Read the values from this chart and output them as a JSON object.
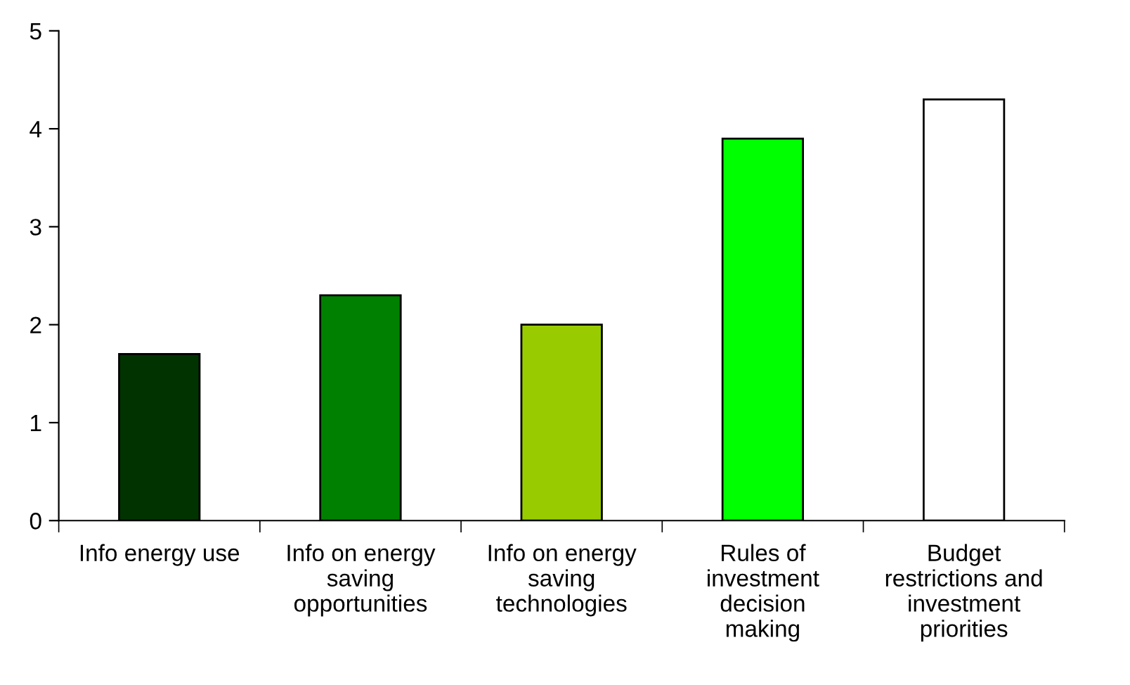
{
  "chart_data": {
    "type": "bar",
    "categories": [
      "Info energy use",
      "Info on energy\nsaving\nopportunities",
      "Info on energy\nsaving\ntechnologies",
      "Rules of\ninvestment\ndecision\nmaking",
      "Budget\nrestrictions and\ninvestment\npriorities"
    ],
    "values": [
      1.7,
      2.3,
      2.0,
      3.9,
      4.3
    ],
    "colors": [
      "#003300",
      "#008000",
      "#99cc00",
      "#00ff00",
      "#ffffff"
    ],
    "ylim": [
      0,
      5
    ],
    "yticks": [
      0,
      1,
      2,
      3,
      4,
      5
    ],
    "grid": false,
    "legend": false
  }
}
